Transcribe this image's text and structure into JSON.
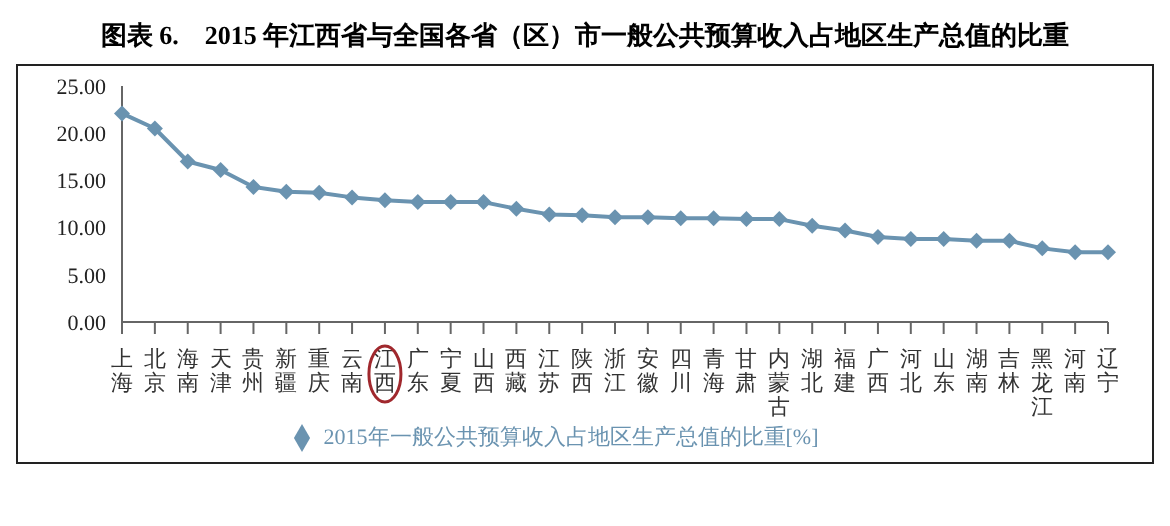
{
  "chart_data": {
    "type": "line",
    "title": "图表 6.    2015 年江西省与全国各省（区）市一般公共预算收入占地区生产总值的比重",
    "categories": [
      "上海",
      "北京",
      "海南",
      "天津",
      "贵州",
      "新疆",
      "重庆",
      "云南",
      "江西",
      "广东",
      "宁夏",
      "山西",
      "西藏",
      "江苏",
      "陕西",
      "浙江",
      "安徽",
      "四川",
      "青海",
      "甘肃",
      "内蒙古",
      "湖北",
      "福建",
      "广西",
      "河北",
      "山东",
      "湖南",
      "吉林",
      "黑龙江",
      "河南",
      "辽宁"
    ],
    "series": [
      {
        "name": "2015年一般公共预算收入占地区生产总值的比重[%]",
        "color": "#6a93b0",
        "values": [
          22.1,
          20.5,
          17.0,
          16.1,
          14.3,
          13.8,
          13.7,
          13.2,
          12.9,
          12.7,
          12.7,
          12.7,
          12.0,
          11.4,
          11.3,
          11.1,
          11.1,
          11.0,
          11.0,
          10.9,
          10.9,
          10.2,
          9.7,
          9.0,
          8.8,
          8.8,
          8.6,
          8.6,
          7.8,
          7.4,
          7.4
        ]
      }
    ],
    "ylim": [
      0,
      25
    ],
    "yticks": [
      {
        "value": 0,
        "label": "0.00"
      },
      {
        "value": 5,
        "label": "5.00"
      },
      {
        "value": 10,
        "label": "10.00"
      },
      {
        "value": 15,
        "label": "15.00"
      },
      {
        "value": 20,
        "label": "20.00"
      },
      {
        "value": 25,
        "label": "25.00"
      }
    ],
    "grid": false,
    "legend": "bottom",
    "marker": "diamond",
    "line_style": "solid"
  }
}
